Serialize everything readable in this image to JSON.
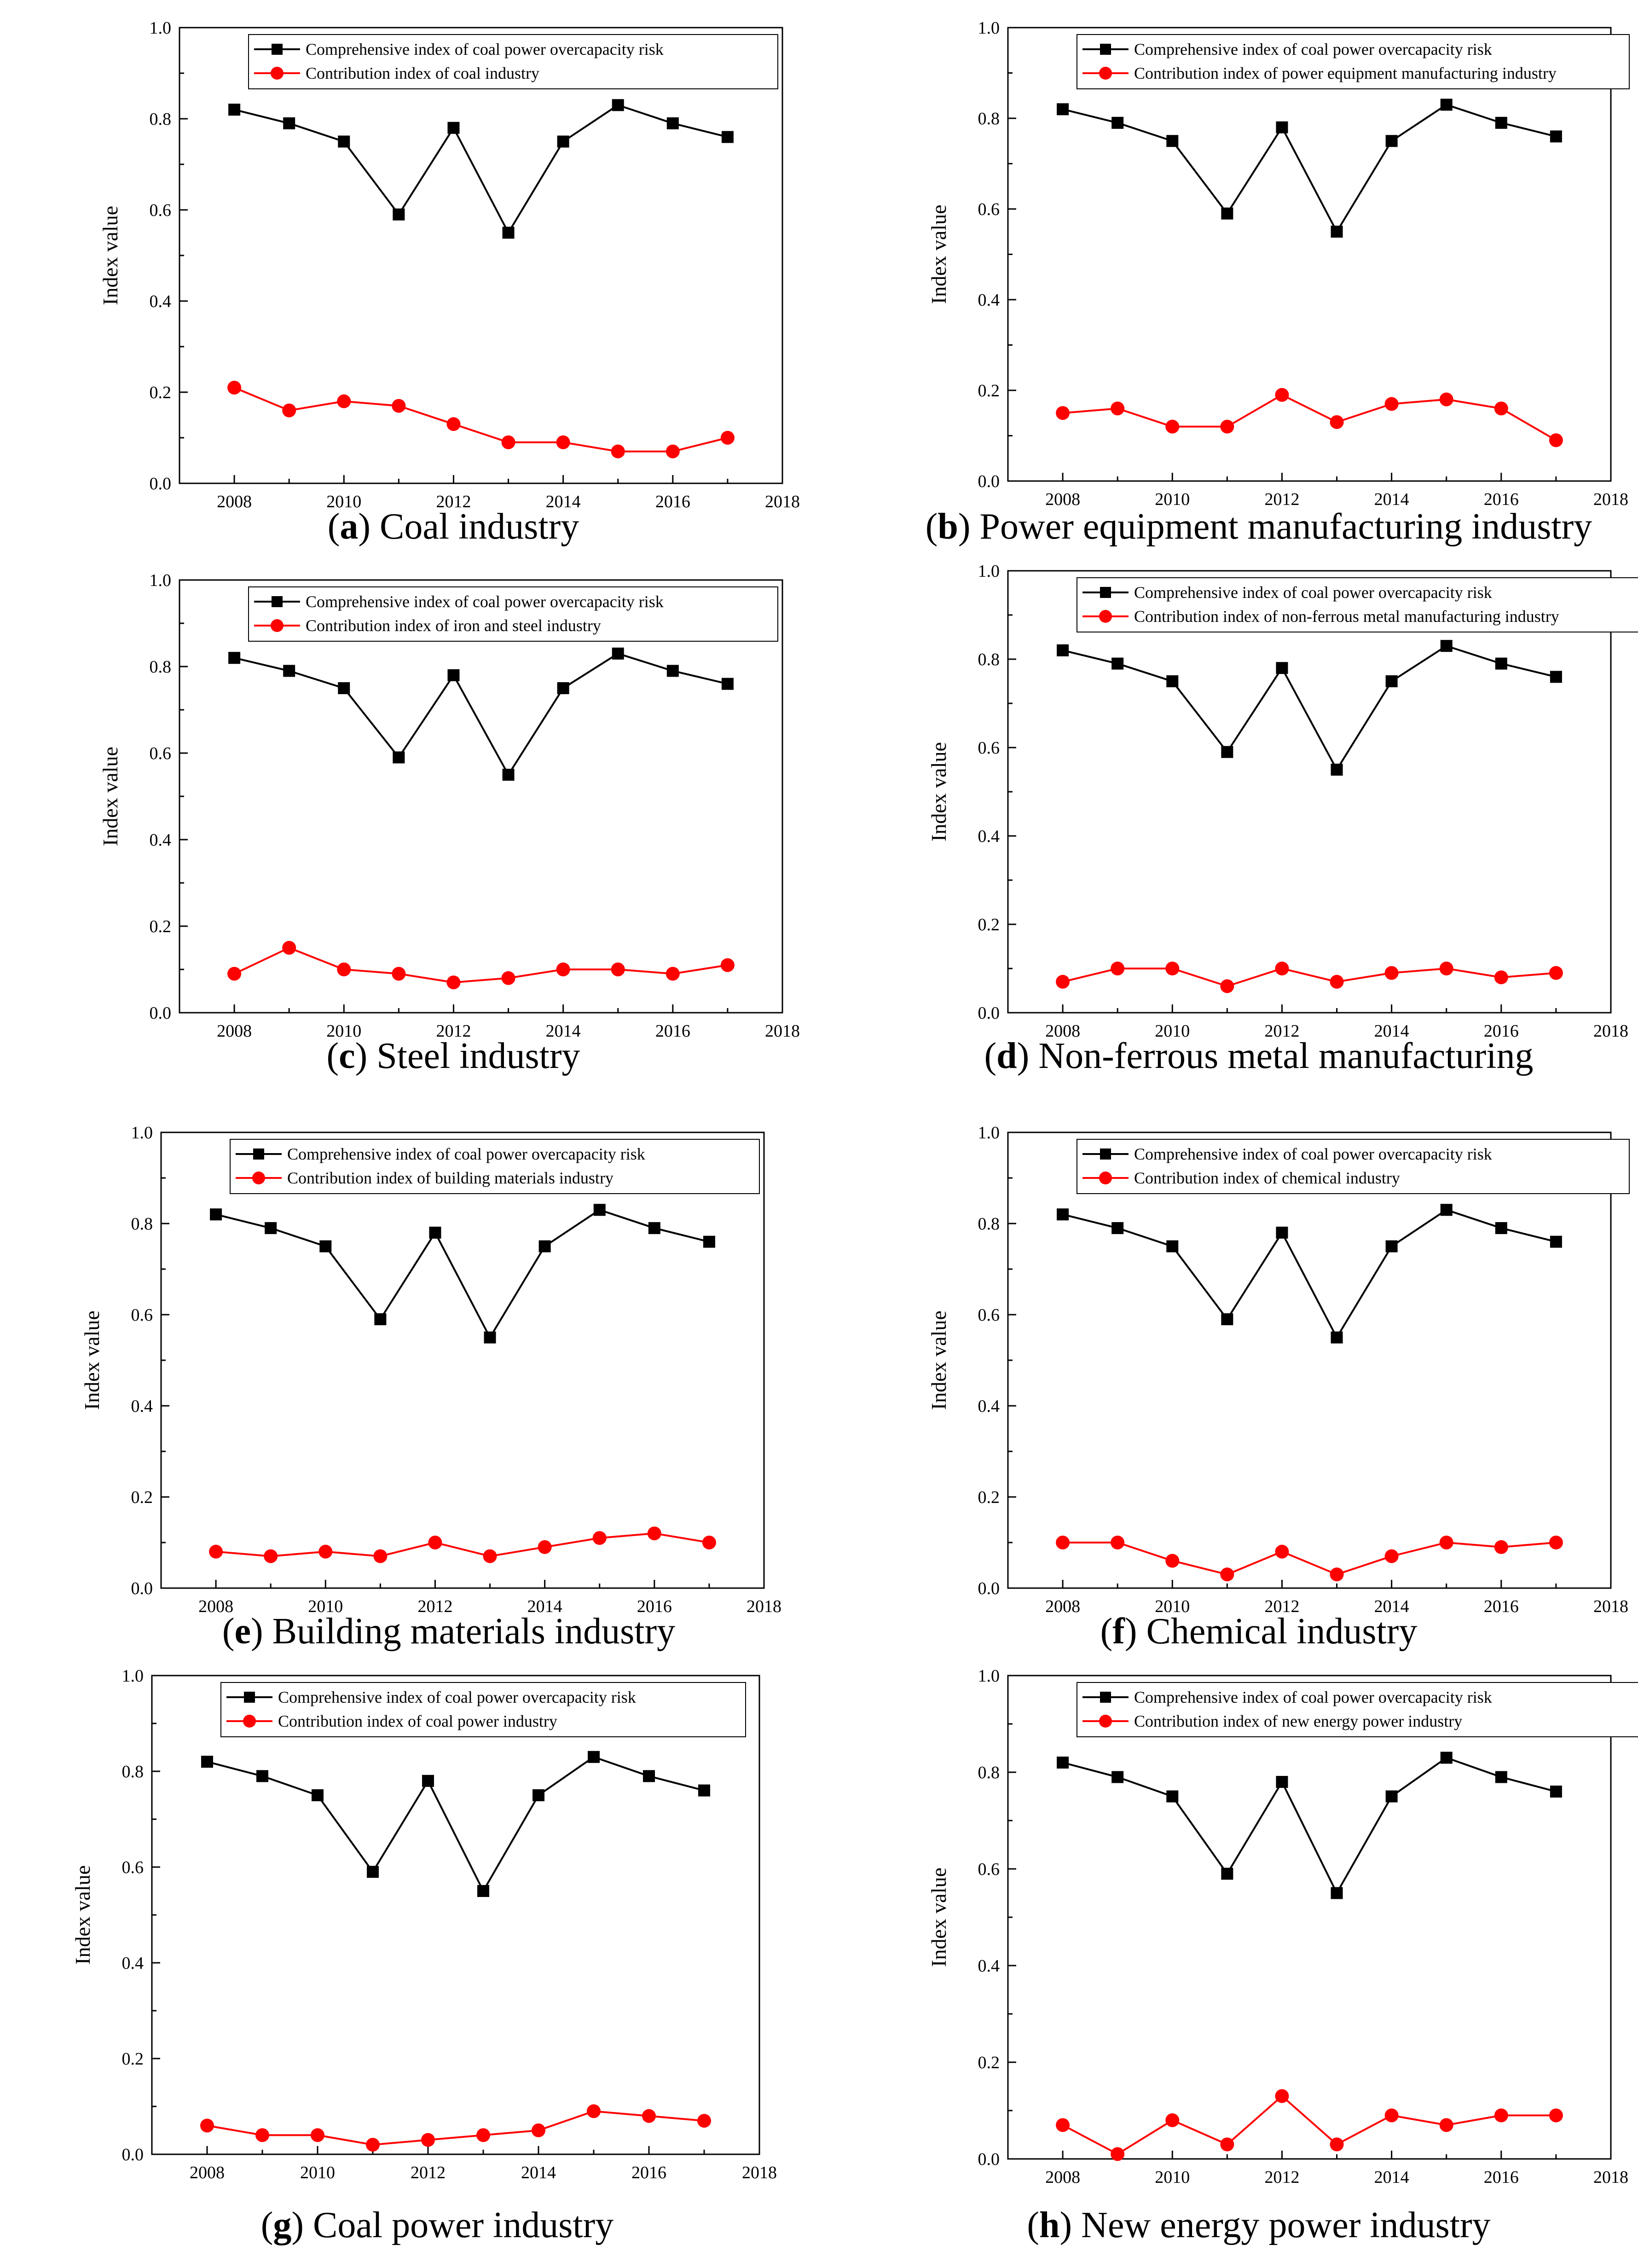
{
  "chart_data": [
    {
      "type": "line",
      "panel_letter": "a",
      "caption": "Coal industry",
      "x": [
        2008,
        2009,
        2010,
        2011,
        2012,
        2013,
        2014,
        2015,
        2016,
        2017
      ],
      "xlim": [
        2007,
        2018
      ],
      "ylim": [
        0.0,
        1.0
      ],
      "xticks": [
        "2008",
        "2010",
        "2012",
        "2014",
        "2016",
        "2018"
      ],
      "yticks": [
        "0.0",
        "0.2",
        "0.4",
        "0.6",
        "0.8",
        "1.0"
      ],
      "ylabel": "Index value",
      "xlabel": "",
      "legend_position": "top-center",
      "series": [
        {
          "name": "Comprehensive index of coal power overcapacity risk",
          "color": "#000000",
          "marker": "square",
          "values": [
            0.82,
            0.79,
            0.75,
            0.59,
            0.78,
            0.55,
            0.75,
            0.83,
            0.79,
            0.76
          ]
        },
        {
          "name": "Contribution index of coal industry",
          "color": "#ff0000",
          "marker": "circle",
          "values": [
            0.21,
            0.16,
            0.18,
            0.17,
            0.13,
            0.09,
            0.09,
            0.07,
            0.07,
            0.1
          ]
        }
      ]
    },
    {
      "type": "line",
      "panel_letter": "b",
      "caption": "Power equipment manufacturing industry",
      "x": [
        2008,
        2009,
        2010,
        2011,
        2012,
        2013,
        2014,
        2015,
        2016,
        2017
      ],
      "xlim": [
        2007,
        2018
      ],
      "ylim": [
        0.0,
        1.0
      ],
      "xticks": [
        "2008",
        "2010",
        "2012",
        "2014",
        "2016",
        "2018"
      ],
      "yticks": [
        "0.0",
        "0.2",
        "0.4",
        "0.6",
        "0.8",
        "1.0"
      ],
      "ylabel": "Index value",
      "xlabel": "",
      "legend_position": "top-center",
      "series": [
        {
          "name": "Comprehensive index of coal power overcapacity risk",
          "color": "#000000",
          "marker": "square",
          "values": [
            0.82,
            0.79,
            0.75,
            0.59,
            0.78,
            0.55,
            0.75,
            0.83,
            0.79,
            0.76
          ]
        },
        {
          "name": "Contribution index of power equipment manufacturing industry",
          "color": "#ff0000",
          "marker": "circle",
          "values": [
            0.15,
            0.16,
            0.12,
            0.12,
            0.19,
            0.13,
            0.17,
            0.18,
            0.16,
            0.09
          ]
        }
      ]
    },
    {
      "type": "line",
      "panel_letter": "c",
      "caption": "Steel industry",
      "x": [
        2008,
        2009,
        2010,
        2011,
        2012,
        2013,
        2014,
        2015,
        2016,
        2017
      ],
      "xlim": [
        2007,
        2018
      ],
      "ylim": [
        0.0,
        1.0
      ],
      "xticks": [
        "2008",
        "2010",
        "2012",
        "2014",
        "2016",
        "2018"
      ],
      "yticks": [
        "0.0",
        "0.2",
        "0.4",
        "0.6",
        "0.8",
        "1.0"
      ],
      "ylabel": "Index value",
      "xlabel": "",
      "legend_position": "top-center",
      "series": [
        {
          "name": "Comprehensive index of coal power overcapacity risk",
          "color": "#000000",
          "marker": "square",
          "values": [
            0.82,
            0.79,
            0.75,
            0.59,
            0.78,
            0.55,
            0.75,
            0.83,
            0.79,
            0.76
          ]
        },
        {
          "name": "Contribution index of iron and steel industry",
          "color": "#ff0000",
          "marker": "circle",
          "values": [
            0.09,
            0.15,
            0.1,
            0.09,
            0.07,
            0.08,
            0.1,
            0.1,
            0.09,
            0.11
          ]
        }
      ]
    },
    {
      "type": "line",
      "panel_letter": "d",
      "caption": "Non-ferrous metal manufacturing",
      "x": [
        2008,
        2009,
        2010,
        2011,
        2012,
        2013,
        2014,
        2015,
        2016,
        2017
      ],
      "xlim": [
        2007,
        2018
      ],
      "ylim": [
        0.0,
        1.0
      ],
      "xticks": [
        "2008",
        "2010",
        "2012",
        "2014",
        "2016",
        "2018"
      ],
      "yticks": [
        "0.0",
        "0.2",
        "0.4",
        "0.6",
        "0.8",
        "1.0"
      ],
      "ylabel": "Index value",
      "xlabel": "",
      "legend_position": "top-center",
      "series": [
        {
          "name": "Comprehensive index of coal power overcapacity risk",
          "color": "#000000",
          "marker": "square",
          "values": [
            0.82,
            0.79,
            0.75,
            0.59,
            0.78,
            0.55,
            0.75,
            0.83,
            0.79,
            0.76
          ]
        },
        {
          "name": "Contribution index of non-ferrous metal manufacturing industry",
          "color": "#ff0000",
          "marker": "circle",
          "values": [
            0.07,
            0.1,
            0.1,
            0.06,
            0.1,
            0.07,
            0.09,
            0.1,
            0.08,
            0.09
          ]
        }
      ]
    },
    {
      "type": "line",
      "panel_letter": "e",
      "caption": "Building materials industry",
      "x": [
        2008,
        2009,
        2010,
        2011,
        2012,
        2013,
        2014,
        2015,
        2016,
        2017
      ],
      "xlim": [
        2007,
        2018
      ],
      "ylim": [
        0.0,
        1.0
      ],
      "xticks": [
        "2008",
        "2010",
        "2012",
        "2014",
        "2016",
        "2018"
      ],
      "yticks": [
        "0.0",
        "0.2",
        "0.4",
        "0.6",
        "0.8",
        "1.0"
      ],
      "ylabel": "Index value",
      "xlabel": "",
      "legend_position": "top-center",
      "series": [
        {
          "name": "Comprehensive index of coal power overcapacity risk",
          "color": "#000000",
          "marker": "square",
          "values": [
            0.82,
            0.79,
            0.75,
            0.59,
            0.78,
            0.55,
            0.75,
            0.83,
            0.79,
            0.76
          ]
        },
        {
          "name": "Contribution index of building materials industry",
          "color": "#ff0000",
          "marker": "circle",
          "values": [
            0.08,
            0.07,
            0.08,
            0.07,
            0.1,
            0.07,
            0.09,
            0.11,
            0.12,
            0.1
          ]
        }
      ]
    },
    {
      "type": "line",
      "panel_letter": "f",
      "caption": "Chemical industry",
      "x": [
        2008,
        2009,
        2010,
        2011,
        2012,
        2013,
        2014,
        2015,
        2016,
        2017
      ],
      "xlim": [
        2007,
        2018
      ],
      "ylim": [
        0.0,
        1.0
      ],
      "xticks": [
        "2008",
        "2010",
        "2012",
        "2014",
        "2016",
        "2018"
      ],
      "yticks": [
        "0.0",
        "0.2",
        "0.4",
        "0.6",
        "0.8",
        "1.0"
      ],
      "ylabel": "Index value",
      "xlabel": "",
      "legend_position": "top-center",
      "series": [
        {
          "name": "Comprehensive index of coal power overcapacity risk",
          "color": "#000000",
          "marker": "square",
          "values": [
            0.82,
            0.79,
            0.75,
            0.59,
            0.78,
            0.55,
            0.75,
            0.83,
            0.79,
            0.76
          ]
        },
        {
          "name": "Contribution index of chemical industry",
          "color": "#ff0000",
          "marker": "circle",
          "values": [
            0.1,
            0.1,
            0.06,
            0.03,
            0.08,
            0.03,
            0.07,
            0.1,
            0.09,
            0.1
          ]
        }
      ]
    },
    {
      "type": "line",
      "panel_letter": "g",
      "caption": "Coal power industry",
      "x": [
        2008,
        2009,
        2010,
        2011,
        2012,
        2013,
        2014,
        2015,
        2016,
        2017
      ],
      "xlim": [
        2007,
        2018
      ],
      "ylim": [
        0.0,
        1.0
      ],
      "xticks": [
        "2008",
        "2010",
        "2012",
        "2014",
        "2016",
        "2018"
      ],
      "yticks": [
        "0.0",
        "0.2",
        "0.4",
        "0.6",
        "0.8",
        "1.0"
      ],
      "ylabel": "Index value",
      "xlabel": "",
      "legend_position": "top-center",
      "series": [
        {
          "name": "Comprehensive index of coal power overcapacity risk",
          "color": "#000000",
          "marker": "square",
          "values": [
            0.82,
            0.79,
            0.75,
            0.59,
            0.78,
            0.55,
            0.75,
            0.83,
            0.79,
            0.76
          ]
        },
        {
          "name": "Contribution index of coal power industry",
          "color": "#ff0000",
          "marker": "circle",
          "values": [
            0.06,
            0.04,
            0.04,
            0.02,
            0.03,
            0.04,
            0.05,
            0.09,
            0.08,
            0.07
          ]
        }
      ]
    },
    {
      "type": "line",
      "panel_letter": "h",
      "caption": "New energy power industry",
      "x": [
        2008,
        2009,
        2010,
        2011,
        2012,
        2013,
        2014,
        2015,
        2016,
        2017
      ],
      "xlim": [
        2007,
        2018
      ],
      "ylim": [
        0.0,
        1.0
      ],
      "xticks": [
        "2008",
        "2010",
        "2012",
        "2014",
        "2016",
        "2018"
      ],
      "yticks": [
        "0.0",
        "0.2",
        "0.4",
        "0.6",
        "0.8",
        "1.0"
      ],
      "ylabel": "Index value",
      "xlabel": "",
      "legend_position": "top-center",
      "series": [
        {
          "name": "Comprehensive index of coal power overcapacity risk",
          "color": "#000000",
          "marker": "square",
          "values": [
            0.82,
            0.79,
            0.75,
            0.59,
            0.78,
            0.55,
            0.75,
            0.83,
            0.79,
            0.76
          ]
        },
        {
          "name": "Contribution index of new energy power industry",
          "color": "#ff0000",
          "marker": "circle",
          "values": [
            0.07,
            0.01,
            0.08,
            0.03,
            0.13,
            0.03,
            0.09,
            0.07,
            0.09,
            0.09
          ]
        }
      ]
    }
  ]
}
